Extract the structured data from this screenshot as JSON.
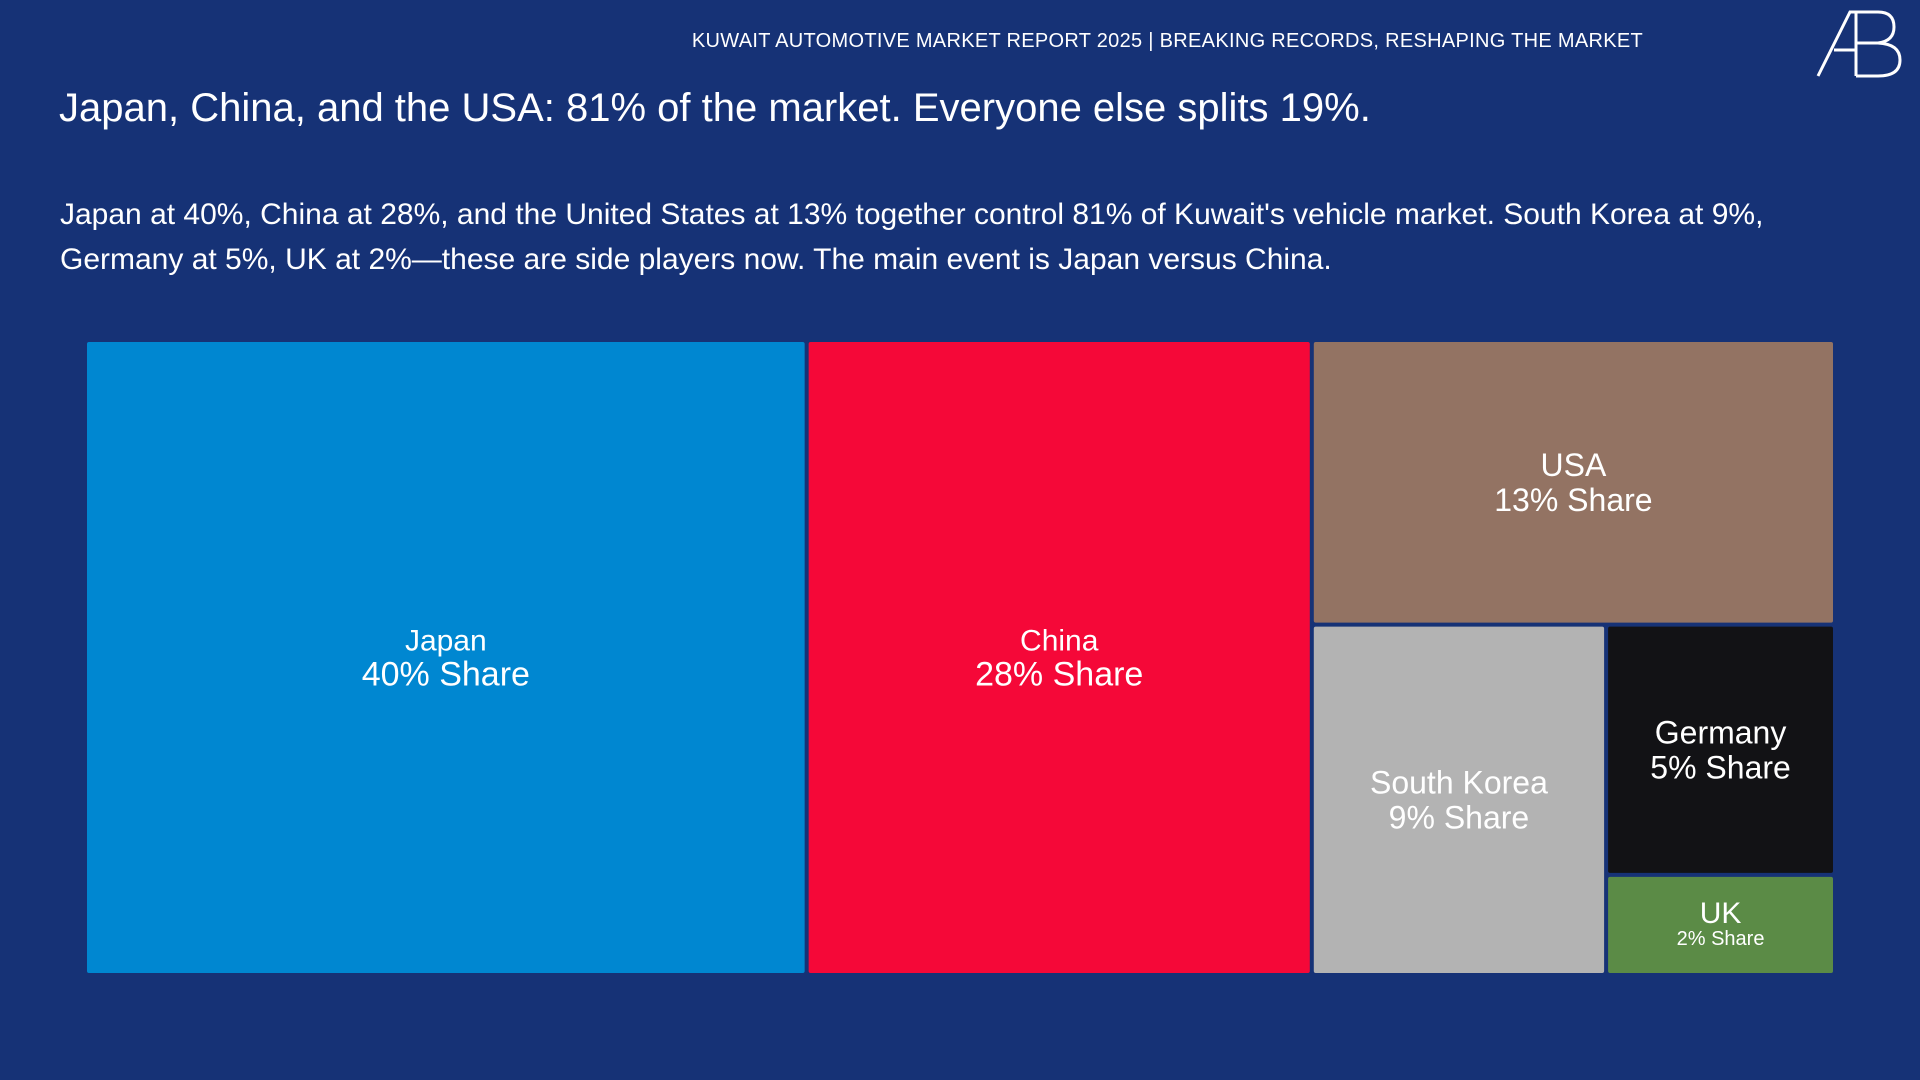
{
  "header": {
    "report_title": "KUWAIT AUTOMOTIVE MARKET REPORT 2025 | BREAKING RECORDS, RESHAPING THE MARKET",
    "logo_text": "AB"
  },
  "headline": "Japan, China, and the USA: 81% of the market. Everyone else splits 19%.",
  "description": "Japan at 40%, China at 28%, and the United States at 13% together control 81% of Kuwait's vehicle market. South Korea at 9%, Germany at 5%, UK at 2%—these are side players now. The main event is Japan versus China.",
  "colors": {
    "background": "#163276",
    "text": "#ffffff"
  },
  "chart_data": {
    "type": "treemap",
    "title": "",
    "unit": "% Share",
    "items": [
      {
        "name": "Japan",
        "value": 40,
        "label": "40% Share",
        "color": "#0087d1"
      },
      {
        "name": "China",
        "value": 28,
        "label": "28% Share",
        "color": "#f50838"
      },
      {
        "name": "USA",
        "value": 13,
        "label": "13% Share",
        "color": "#937363"
      },
      {
        "name": "South Korea",
        "value": 9,
        "label": "9% Share",
        "color": "#b3b3b3"
      },
      {
        "name": "Germany",
        "value": 5,
        "label": "5% Share",
        "color": "#121215"
      },
      {
        "name": "UK",
        "value": 2,
        "label": "2% Share",
        "color": "#5b8b46"
      }
    ]
  }
}
